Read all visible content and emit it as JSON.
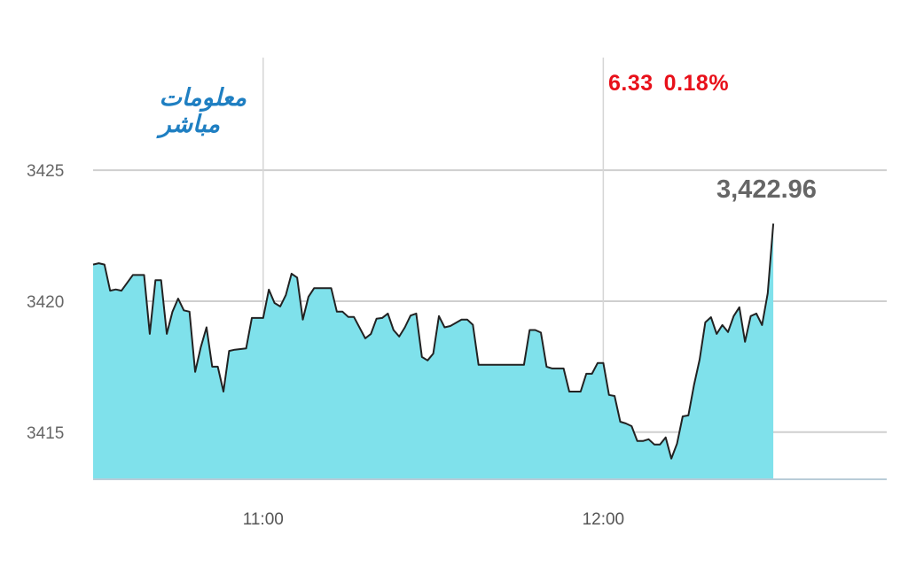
{
  "logo": {
    "line1": "معلومات",
    "line2": "مباشر",
    "tm": "™"
  },
  "header": {
    "change_points": "6.33",
    "change_percent": "0.18%",
    "change_color": "#e8101a"
  },
  "last_value_label": "3,422.96",
  "chart_data": {
    "type": "area",
    "title": "",
    "xlabel": "",
    "ylabel": "",
    "x_ticks": [
      "11:00",
      "12:00"
    ],
    "y_ticks": [
      3415,
      3420,
      3425
    ],
    "x_range": [
      "10:30",
      "12:50"
    ],
    "ylim": [
      3413.2,
      3429.3
    ],
    "grid": true,
    "line_color": "#222222",
    "fill_color": "#7fe1eb",
    "series": [
      {
        "x": [
          "10:30",
          "10:31",
          "10:32",
          "10:33",
          "10:34",
          "10:35",
          "10:37",
          "10:39",
          "10:40",
          "10:41",
          "10:42",
          "10:43",
          "10:44",
          "10:45",
          "10:46",
          "10:47",
          "10:48",
          "10:49",
          "10:50",
          "10:51",
          "10:52",
          "10:53",
          "10:54",
          "10:55",
          "10:57",
          "10:58",
          "11:00",
          "11:01",
          "11:02",
          "11:03",
          "11:04",
          "11:05",
          "11:06",
          "11:07",
          "11:08",
          "11:09",
          "11:12",
          "11:13",
          "11:14",
          "11:15",
          "11:16",
          "11:18",
          "11:19",
          "11:20",
          "11:21",
          "11:22",
          "11:23",
          "11:24",
          "11:25",
          "11:26",
          "11:27",
          "11:28",
          "11:29",
          "11:30",
          "11:31",
          "11:32",
          "11:33",
          "11:35",
          "11:36",
          "11:37",
          "11:38",
          "11:46",
          "11:47",
          "11:48",
          "11:49",
          "11:50",
          "11:51",
          "11:53",
          "11:54",
          "11:56",
          "11:57",
          "11:58",
          "11:59",
          "12:00",
          "12:01",
          "12:02",
          "12:03",
          "12:04",
          "12:05",
          "12:06",
          "12:07",
          "12:08",
          "12:09",
          "12:10",
          "12:11",
          "12:12",
          "12:13",
          "12:14",
          "12:15",
          "12:16",
          "12:17",
          "12:18",
          "12:19",
          "12:20",
          "12:21",
          "12:22",
          "12:23",
          "12:24",
          "12:25",
          "12:26",
          "12:27",
          "12:28",
          "12:29",
          "12:30"
        ],
        "values": [
          3421.4,
          3421.45,
          3421.4,
          3420.4,
          3420.45,
          3420.4,
          3421.0,
          3421.0,
          3418.75,
          3420.8,
          3420.8,
          3418.75,
          3419.6,
          3420.1,
          3419.65,
          3419.6,
          3417.3,
          3418.25,
          3419.0,
          3417.5,
          3417.5,
          3416.55,
          3418.1,
          3418.15,
          3418.2,
          3419.36,
          3419.36,
          3420.44,
          3419.93,
          3419.8,
          3420.24,
          3421.05,
          3420.9,
          3419.3,
          3420.17,
          3420.5,
          3420.5,
          3419.6,
          3419.6,
          3419.4,
          3419.4,
          3418.58,
          3418.75,
          3419.33,
          3419.36,
          3419.53,
          3418.9,
          3418.65,
          3419.0,
          3419.45,
          3419.53,
          3417.87,
          3417.74,
          3418.0,
          3419.43,
          3419.0,
          3419.05,
          3419.3,
          3419.3,
          3419.1,
          3417.57,
          3417.57,
          3418.9,
          3418.9,
          3418.8,
          3417.5,
          3417.43,
          3417.43,
          3416.55,
          3416.55,
          3417.23,
          3417.23,
          3417.64,
          3417.64,
          3416.42,
          3416.38,
          3415.4,
          3415.33,
          3415.23,
          3414.66,
          3414.66,
          3414.73,
          3414.53,
          3414.53,
          3414.8,
          3413.99,
          3414.56,
          3415.6,
          3415.64,
          3416.79,
          3417.77,
          3419.19,
          3419.39,
          3418.75,
          3419.09,
          3418.82,
          3419.43,
          3419.77,
          3418.45,
          3419.43,
          3419.53,
          3419.09,
          3420.3,
          3422.96
        ]
      }
    ]
  }
}
